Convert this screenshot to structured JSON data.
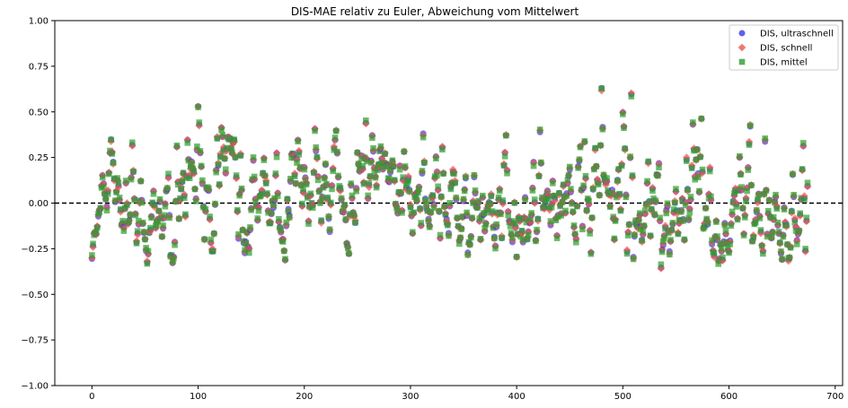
{
  "chart_data": {
    "type": "scatter",
    "title": "DIS-MAE relativ zu Euler, Abweichung vom Mittelwert",
    "xlabel": "",
    "ylabel": "",
    "xlim": [
      -35,
      707
    ],
    "ylim": [
      -1.0,
      1.0
    ],
    "x_ticks": [
      0,
      100,
      200,
      300,
      400,
      500,
      600,
      700
    ],
    "y_ticks": [
      -1.0,
      -0.75,
      -0.5,
      -0.25,
      0.0,
      0.25,
      0.5,
      0.75,
      1.0
    ],
    "x_tick_labels": [
      "0",
      "100",
      "200",
      "300",
      "400",
      "500",
      "600",
      "700"
    ],
    "y_tick_labels": [
      "−1.00",
      "−0.75",
      "−0.50",
      "−0.25",
      "0.00",
      "0.25",
      "0.50",
      "0.75",
      "1.00"
    ],
    "reference_line": {
      "y": 0.0,
      "style": "dashed",
      "color": "#000000"
    },
    "legend_position": "upper right",
    "grid": false,
    "n_points": 675,
    "series": [
      {
        "name": "DIS, ultraschnell",
        "marker": "circle",
        "color": "#3a3ae6"
      },
      {
        "name": "DIS, schnell",
        "marker": "diamond",
        "color": "#f0524f"
      },
      {
        "name": "DIS, mittel",
        "marker": "square",
        "color": "#2e9e2e"
      }
    ],
    "anchors": [
      [
        0,
        -0.31
      ],
      [
        2,
        -0.18
      ],
      [
        4,
        -0.16
      ],
      [
        6,
        -0.06
      ],
      [
        8,
        -0.01
      ],
      [
        10,
        0.15
      ],
      [
        12,
        0.05
      ],
      [
        14,
        -0.02
      ],
      [
        16,
        0.18
      ],
      [
        18,
        0.34
      ],
      [
        20,
        0.22
      ],
      [
        22,
        0.0
      ],
      [
        24,
        0.14
      ],
      [
        26,
        0.04
      ],
      [
        28,
        -0.11
      ],
      [
        30,
        -0.14
      ],
      [
        32,
        0.1
      ],
      [
        34,
        -0.12
      ],
      [
        36,
        -0.05
      ],
      [
        38,
        0.32
      ],
      [
        40,
        0.05
      ],
      [
        42,
        -0.2
      ],
      [
        44,
        -0.1
      ],
      [
        46,
        0.13
      ],
      [
        48,
        -0.12
      ],
      [
        50,
        -0.2
      ],
      [
        52,
        -0.33
      ],
      [
        54,
        -0.18
      ],
      [
        56,
        -0.09
      ],
      [
        58,
        0.06
      ],
      [
        60,
        -0.13
      ],
      [
        62,
        -0.08
      ],
      [
        64,
        0.0
      ],
      [
        66,
        -0.17
      ],
      [
        68,
        -0.06
      ],
      [
        70,
        0.05
      ],
      [
        72,
        0.13
      ],
      [
        74,
        -0.3
      ],
      [
        76,
        -0.33
      ],
      [
        78,
        -0.23
      ],
      [
        80,
        0.28
      ],
      [
        82,
        -0.1
      ],
      [
        84,
        0.1
      ],
      [
        86,
        0.15
      ],
      [
        88,
        -0.05
      ],
      [
        90,
        0.34
      ],
      [
        92,
        0.17
      ],
      [
        94,
        0.22
      ],
      [
        96,
        0.18
      ],
      [
        98,
        0.03
      ],
      [
        100,
        0.52
      ],
      [
        102,
        0.29
      ],
      [
        104,
        0.11
      ],
      [
        106,
        -0.18
      ],
      [
        108,
        0.06
      ],
      [
        110,
        0.05
      ],
      [
        112,
        -0.2
      ],
      [
        114,
        -0.28
      ],
      [
        116,
        -0.02
      ],
      [
        118,
        0.35
      ],
      [
        120,
        0.08
      ],
      [
        122,
        0.44
      ],
      [
        124,
        0.3
      ],
      [
        126,
        0.19
      ],
      [
        128,
        0.38
      ],
      [
        130,
        0.35
      ],
      [
        132,
        0.26
      ],
      [
        134,
        0.36
      ],
      [
        136,
        0.12
      ],
      [
        138,
        -0.2
      ],
      [
        140,
        0.28
      ],
      [
        142,
        -0.15
      ],
      [
        144,
        -0.26
      ],
      [
        146,
        -0.17
      ],
      [
        148,
        -0.28
      ],
      [
        150,
        -0.05
      ],
      [
        152,
        0.25
      ],
      [
        154,
        0.0
      ],
      [
        156,
        -0.08
      ],
      [
        158,
        0.05
      ],
      [
        160,
        0.08
      ],
      [
        162,
        0.22
      ],
      [
        164,
        0.1
      ],
      [
        166,
        -0.05
      ],
      [
        168,
        -0.12
      ],
      [
        170,
        -0.01
      ],
      [
        172,
        0.0
      ],
      [
        174,
        0.26
      ],
      [
        176,
        -0.1
      ],
      [
        178,
        -0.15
      ],
      [
        180,
        -0.2
      ],
      [
        182,
        -0.3
      ],
      [
        184,
        0.02
      ],
      [
        186,
        -0.05
      ],
      [
        188,
        0.28
      ],
      [
        190,
        0.26
      ],
      [
        192,
        0.1
      ],
      [
        194,
        0.35
      ],
      [
        196,
        0.22
      ],
      [
        198,
        -0.02
      ],
      [
        200,
        0.18
      ],
      [
        202,
        0.11
      ],
      [
        204,
        -0.08
      ],
      [
        206,
        0.02
      ],
      [
        208,
        0.0
      ],
      [
        210,
        0.38
      ],
      [
        212,
        0.23
      ],
      [
        214,
        0.06
      ],
      [
        216,
        -0.08
      ],
      [
        218,
        0.12
      ],
      [
        220,
        0.2
      ],
      [
        222,
        0.04
      ],
      [
        224,
        -0.15
      ],
      [
        226,
        0.08
      ],
      [
        228,
        0.3
      ],
      [
        230,
        0.38
      ],
      [
        232,
        0.15
      ],
      [
        234,
        0.05
      ],
      [
        236,
        -0.05
      ],
      [
        238,
        0.0
      ],
      [
        240,
        -0.2
      ],
      [
        242,
        -0.28
      ],
      [
        244,
        0.12
      ],
      [
        246,
        -0.06
      ],
      [
        248,
        -0.1
      ],
      [
        250,
        0.28
      ],
      [
        252,
        0.16
      ],
      [
        254,
        0.24
      ],
      [
        256,
        0.1
      ],
      [
        258,
        0.43
      ],
      [
        260,
        0.05
      ],
      [
        262,
        0.15
      ],
      [
        264,
        0.36
      ],
      [
        266,
        0.2
      ],
      [
        268,
        0.1
      ],
      [
        270,
        0.22
      ],
      [
        272,
        0.32
      ],
      [
        274,
        0.18
      ],
      [
        276,
        0.27
      ],
      [
        278,
        0.18
      ],
      [
        280,
        0.1
      ],
      [
        282,
        0.2
      ],
      [
        284,
        0.22
      ],
      [
        286,
        0.0
      ],
      [
        288,
        -0.03
      ],
      [
        290,
        0.18
      ],
      [
        292,
        -0.05
      ],
      [
        294,
        0.3
      ],
      [
        296,
        0.08
      ],
      [
        298,
        0.14
      ],
      [
        300,
        -0.02
      ],
      [
        302,
        -0.15
      ],
      [
        304,
        0.05
      ],
      [
        306,
        0.0
      ],
      [
        308,
        0.08
      ],
      [
        310,
        -0.1
      ],
      [
        312,
        0.4
      ],
      [
        314,
        0.04
      ],
      [
        316,
        -0.05
      ],
      [
        318,
        -0.12
      ],
      [
        320,
        0.03
      ],
      [
        322,
        0.0
      ],
      [
        324,
        0.24
      ],
      [
        326,
        0.05
      ],
      [
        328,
        -0.2
      ],
      [
        330,
        0.31
      ],
      [
        332,
        0.0
      ],
      [
        334,
        -0.1
      ],
      [
        336,
        -0.15
      ],
      [
        338,
        0.08
      ],
      [
        340,
        0.18
      ],
      [
        342,
        0.12
      ],
      [
        344,
        -0.1
      ],
      [
        346,
        -0.2
      ],
      [
        348,
        -0.15
      ],
      [
        350,
        0.0
      ],
      [
        352,
        0.12
      ],
      [
        354,
        -0.27
      ],
      [
        356,
        -0.22
      ],
      [
        358,
        -0.1
      ],
      [
        360,
        0.15
      ],
      [
        362,
        -0.05
      ],
      [
        364,
        0.0
      ],
      [
        366,
        -0.2
      ],
      [
        368,
        0.05
      ],
      [
        370,
        -0.15
      ],
      [
        372,
        -0.05
      ],
      [
        374,
        0.0
      ],
      [
        376,
        0.02
      ],
      [
        378,
        -0.12
      ],
      [
        380,
        -0.25
      ],
      [
        382,
        -0.05
      ],
      [
        384,
        0.1
      ],
      [
        386,
        -0.18
      ],
      [
        388,
        0.22
      ],
      [
        390,
        0.37
      ],
      [
        392,
        -0.05
      ],
      [
        394,
        -0.1
      ],
      [
        396,
        -0.22
      ],
      [
        398,
        0.0
      ],
      [
        400,
        -0.3
      ],
      [
        402,
        -0.08
      ],
      [
        404,
        -0.16
      ],
      [
        406,
        -0.2
      ],
      [
        408,
        0.05
      ],
      [
        410,
        -0.2
      ],
      [
        412,
        -0.12
      ],
      [
        414,
        -0.05
      ],
      [
        416,
        0.2
      ],
      [
        418,
        -0.18
      ],
      [
        420,
        -0.1
      ],
      [
        422,
        0.37
      ],
      [
        424,
        0.03
      ],
      [
        426,
        -0.05
      ],
      [
        428,
        0.05
      ],
      [
        430,
        0.06
      ],
      [
        432,
        -0.12
      ],
      [
        434,
        0.1
      ],
      [
        436,
        0.0
      ],
      [
        438,
        -0.18
      ],
      [
        440,
        0.05
      ],
      [
        442,
        -0.06
      ],
      [
        444,
        0.12
      ],
      [
        446,
        -0.05
      ],
      [
        448,
        0.1
      ],
      [
        450,
        0.18
      ],
      [
        452,
        0.0
      ],
      [
        454,
        -0.12
      ],
      [
        456,
        -0.2
      ],
      [
        458,
        0.2
      ],
      [
        460,
        0.3
      ],
      [
        462,
        -0.15
      ],
      [
        464,
        0.34
      ],
      [
        466,
        -0.02
      ],
      [
        468,
        0.0
      ],
      [
        470,
        -0.28
      ],
      [
        472,
        0.1
      ],
      [
        474,
        0.28
      ],
      [
        476,
        0.14
      ],
      [
        478,
        0.04
      ],
      [
        480,
        0.62
      ],
      [
        482,
        0.17
      ],
      [
        484,
        0.12
      ],
      [
        486,
        0.08
      ],
      [
        488,
        0.0
      ],
      [
        490,
        0.05
      ],
      [
        492,
        -0.22
      ],
      [
        494,
        0.03
      ],
      [
        496,
        0.18
      ],
      [
        498,
        -0.05
      ],
      [
        500,
        0.5
      ],
      [
        502,
        0.31
      ],
      [
        504,
        -0.25
      ],
      [
        506,
        -0.1
      ],
      [
        508,
        0.6
      ],
      [
        510,
        -0.28
      ],
      [
        512,
        -0.12
      ],
      [
        514,
        -0.15
      ],
      [
        516,
        -0.05
      ],
      [
        518,
        -0.2
      ],
      [
        520,
        -0.12
      ],
      [
        522,
        0.0
      ],
      [
        524,
        0.22
      ],
      [
        526,
        -0.2
      ],
      [
        528,
        0.1
      ],
      [
        530,
        -0.08
      ],
      [
        532,
        0.15
      ],
      [
        534,
        0.2
      ],
      [
        536,
        -0.35
      ],
      [
        538,
        -0.2
      ],
      [
        540,
        -0.12
      ],
      [
        542,
        0.0
      ],
      [
        544,
        -0.28
      ],
      [
        546,
        -0.15
      ],
      [
        548,
        -0.05
      ],
      [
        550,
        0.05
      ],
      [
        552,
        -0.18
      ],
      [
        554,
        -0.08
      ],
      [
        556,
        0.02
      ],
      [
        558,
        -0.22
      ],
      [
        560,
        0.25
      ],
      [
        562,
        -0.1
      ],
      [
        564,
        0.0
      ],
      [
        566,
        0.45
      ],
      [
        568,
        0.12
      ],
      [
        570,
        0.3
      ],
      [
        572,
        0.05
      ],
      [
        574,
        0.44
      ],
      [
        576,
        -0.15
      ],
      [
        578,
        -0.05
      ],
      [
        580,
        -0.1
      ],
      [
        582,
        0.2
      ],
      [
        584,
        -0.2
      ],
      [
        586,
        -0.28
      ],
      [
        588,
        -0.1
      ],
      [
        590,
        -0.32
      ],
      [
        592,
        -0.25
      ],
      [
        594,
        -0.3
      ],
      [
        596,
        -0.1
      ],
      [
        598,
        -0.2
      ],
      [
        600,
        -0.28
      ],
      [
        602,
        -0.12
      ],
      [
        604,
        0.02
      ],
      [
        606,
        0.05
      ],
      [
        608,
        -0.1
      ],
      [
        610,
        0.23
      ],
      [
        612,
        0.06
      ],
      [
        614,
        -0.15
      ],
      [
        616,
        0.0
      ],
      [
        618,
        0.2
      ],
      [
        620,
        0.42
      ],
      [
        622,
        -0.22
      ],
      [
        624,
        -0.1
      ],
      [
        626,
        -0.05
      ],
      [
        628,
        0.03
      ],
      [
        630,
        -0.18
      ],
      [
        632,
        -0.28
      ],
      [
        634,
        0.34
      ],
      [
        636,
        -0.15
      ],
      [
        638,
        0.0
      ],
      [
        640,
        -0.2
      ],
      [
        642,
        -0.08
      ],
      [
        644,
        0.05
      ],
      [
        646,
        -0.12
      ],
      [
        648,
        -0.2
      ],
      [
        650,
        -0.3
      ],
      [
        652,
        -0.05
      ],
      [
        654,
        -0.15
      ],
      [
        656,
        -0.3
      ],
      [
        658,
        -0.26
      ],
      [
        660,
        0.14
      ],
      [
        662,
        -0.1
      ],
      [
        664,
        -0.2
      ],
      [
        666,
        -0.15
      ],
      [
        668,
        0.03
      ],
      [
        670,
        0.34
      ],
      [
        672,
        -0.28
      ],
      [
        674,
        0.08
      ]
    ]
  }
}
